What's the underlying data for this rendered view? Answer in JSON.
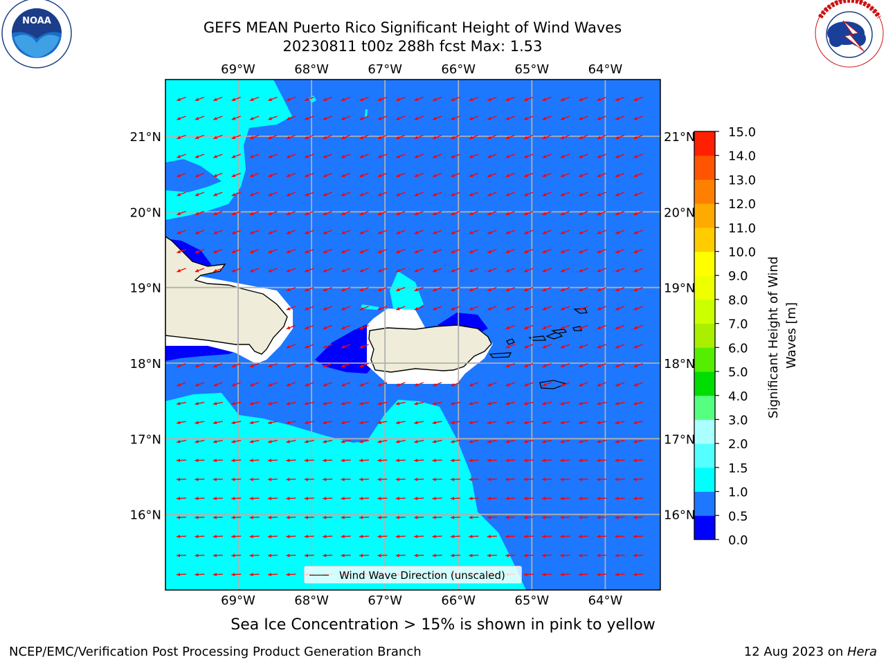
{
  "title": {
    "line1": "GEFS MEAN Puerto Rico Significant Height of Wind Waves",
    "line2": "20230811 t00z 288h fcst   Max: 1.53"
  },
  "logos": {
    "left": {
      "icon": "noaa-logo",
      "text": "NOAA",
      "ring_text": "NATIONAL OCEANIC AND ATMOSPHERIC ADMINISTRATION · U.S. DEPARTMENT OF COMMERCE"
    },
    "right": {
      "icon": "national-weather-service-logo",
      "ring_text": "NATIONAL WEATHER SERVICE"
    }
  },
  "map": {
    "longitude_labels": [
      "69°W",
      "68°W",
      "67°W",
      "66°W",
      "65°W",
      "64°W"
    ],
    "latitude_labels": [
      "21°N",
      "20°N",
      "19°N",
      "18°N",
      "17°N",
      "16°N"
    ],
    "longitude_values": [
      -69,
      -68,
      -67,
      -66,
      -65,
      -64
    ],
    "latitude_values": [
      21,
      20,
      19,
      18,
      17,
      16
    ],
    "extent": {
      "lon_min": -69.99,
      "lon_max": -63.25,
      "lat_min": 15.0,
      "lat_max": 21.75
    },
    "wind_wave_direction": "toward west-southwest (from east-northeast)",
    "colors": {
      "ocean_low": "#1e77ff",
      "ocean_high": "#00ffff",
      "ocean_vlow": "#0000ff",
      "land": "#efedd9",
      "arrows": "#ff0000",
      "grid": "#b0b0b0"
    }
  },
  "legend": {
    "label": "Wind Wave Direction (unscaled)"
  },
  "colorbar": {
    "label_line1": "Significant Height of Wind",
    "label_line2": "Waves [m]",
    "ticks": [
      "0.0",
      "0.5",
      "1.0",
      "1.5",
      "2.0",
      "3.0",
      "4.0",
      "5.0",
      "6.0",
      "7.0",
      "8.0",
      "9.0",
      "10.0",
      "11.0",
      "12.0",
      "13.0",
      "14.0",
      "15.0"
    ],
    "colors": [
      "#0000ff",
      "#1e77ff",
      "#00ffff",
      "#53ffff",
      "#aaffff",
      "#55ff80",
      "#00dd00",
      "#55ee00",
      "#aaee00",
      "#ccff00",
      "#eeff00",
      "#ffff00",
      "#ffcc00",
      "#ffaa00",
      "#ff8000",
      "#ff5500",
      "#ff2000",
      "#ff0000"
    ]
  },
  "note": "Sea Ice Concentration > 15% is shown in pink to yellow",
  "footer": {
    "left": "NCEP/EMC/Verification Post Processing Product Generation Branch",
    "right_prefix": "12 Aug 2023 on ",
    "right_host": "Hera"
  }
}
